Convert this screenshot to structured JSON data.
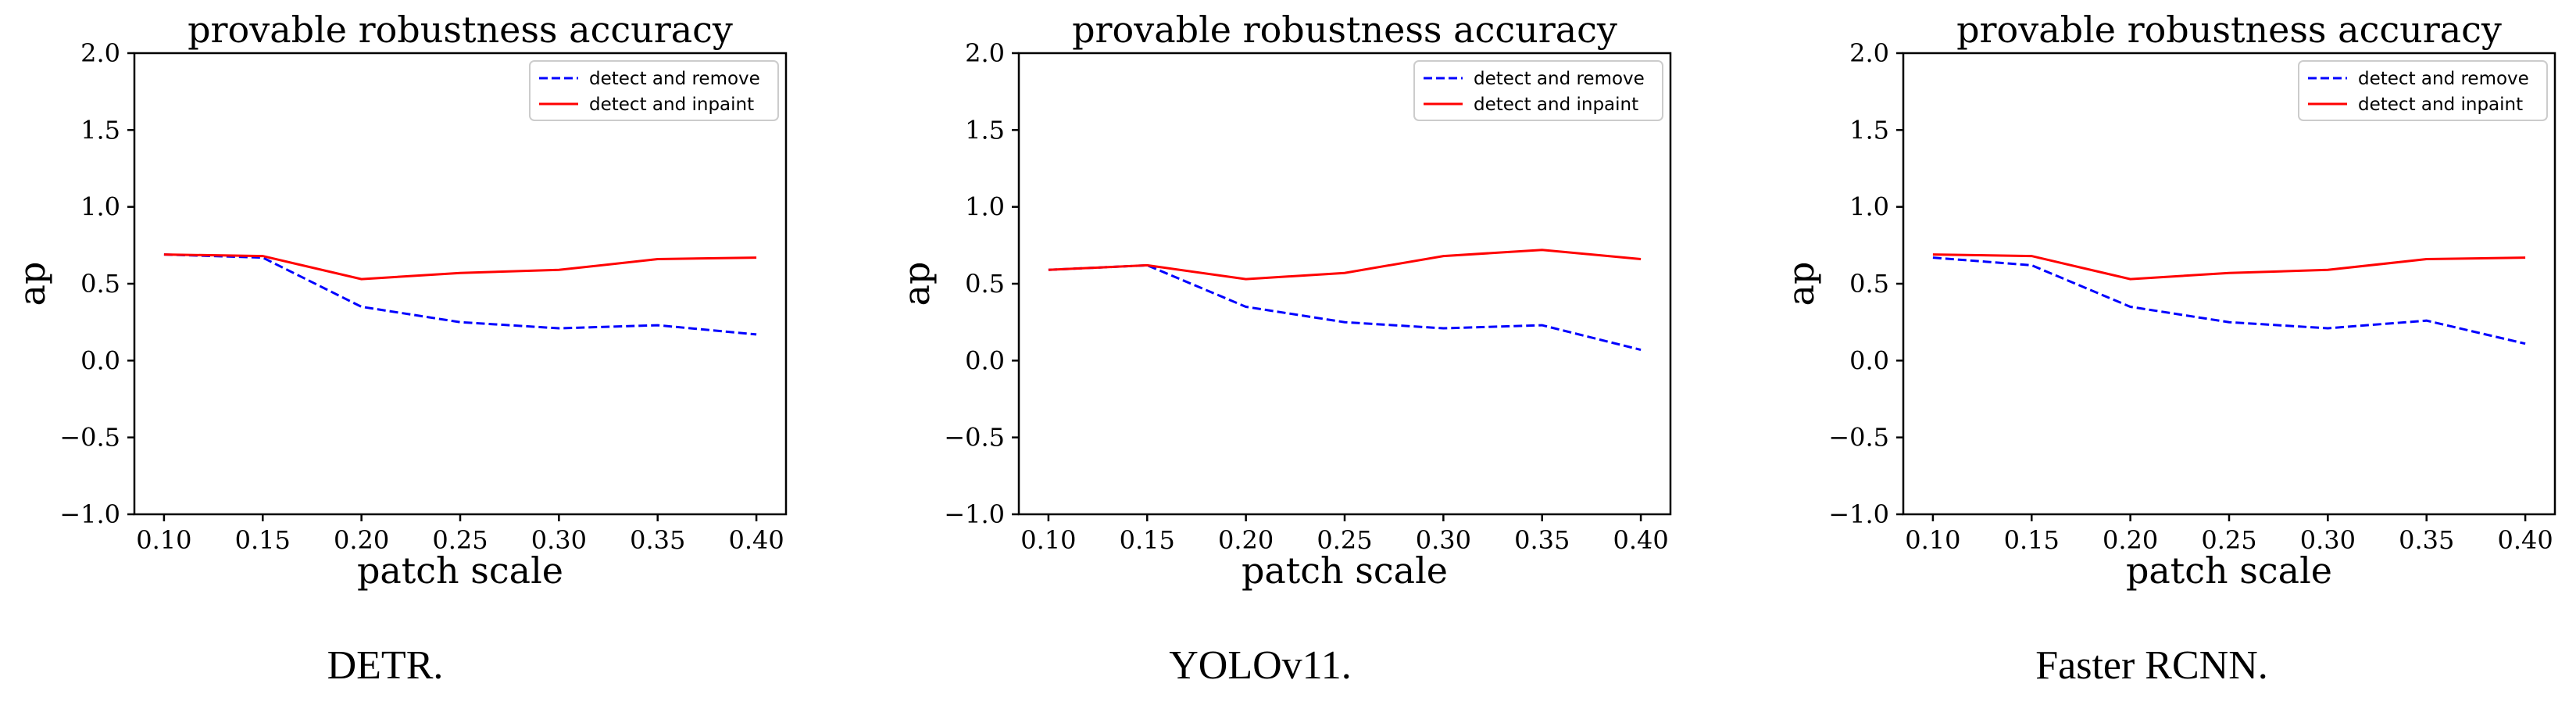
{
  "chart_data": [
    {
      "type": "line",
      "title": "provable robustness accuracy",
      "xlabel": "patch scale",
      "ylabel": "ap",
      "caption": "DETR.",
      "xlim": [
        0.085,
        0.415
      ],
      "ylim": [
        -1.0,
        2.0
      ],
      "x": [
        0.1,
        0.15,
        0.2,
        0.25,
        0.3,
        0.35,
        0.4
      ],
      "xticks": [
        "0.10",
        "0.15",
        "0.20",
        "0.25",
        "0.30",
        "0.35",
        "0.40"
      ],
      "yticks": [
        "−1.0",
        "−0.5",
        "0.0",
        "0.5",
        "1.0",
        "1.5",
        "2.0"
      ],
      "legend_position": "top-right",
      "series": [
        {
          "name": "detect and remove",
          "color": "#0000ff",
          "dash": "dashed",
          "values": [
            0.69,
            0.67,
            0.35,
            0.25,
            0.21,
            0.23,
            0.17
          ]
        },
        {
          "name": "detect and inpaint",
          "color": "#ff0000",
          "dash": "solid",
          "values": [
            0.69,
            0.68,
            0.53,
            0.57,
            0.59,
            0.66,
            0.67
          ]
        }
      ]
    },
    {
      "type": "line",
      "title": "provable robustness accuracy",
      "xlabel": "patch scale",
      "ylabel": "ap",
      "caption": "YOLOv11.",
      "xlim": [
        0.085,
        0.415
      ],
      "ylim": [
        -1.0,
        2.0
      ],
      "x": [
        0.1,
        0.15,
        0.2,
        0.25,
        0.3,
        0.35,
        0.4
      ],
      "xticks": [
        "0.10",
        "0.15",
        "0.20",
        "0.25",
        "0.30",
        "0.35",
        "0.40"
      ],
      "yticks": [
        "−1.0",
        "−0.5",
        "0.0",
        "0.5",
        "1.0",
        "1.5",
        "2.0"
      ],
      "legend_position": "top-right",
      "series": [
        {
          "name": "detect and remove",
          "color": "#0000ff",
          "dash": "dashed",
          "values": [
            0.59,
            0.62,
            0.35,
            0.25,
            0.21,
            0.23,
            0.07
          ]
        },
        {
          "name": "detect and inpaint",
          "color": "#ff0000",
          "dash": "solid",
          "values": [
            0.59,
            0.62,
            0.53,
            0.57,
            0.68,
            0.72,
            0.66
          ]
        }
      ]
    },
    {
      "type": "line",
      "title": "provable robustness accuracy",
      "xlabel": "patch scale",
      "ylabel": "ap",
      "caption": "Faster RCNN.",
      "xlim": [
        0.085,
        0.415
      ],
      "ylim": [
        -1.0,
        2.0
      ],
      "x": [
        0.1,
        0.15,
        0.2,
        0.25,
        0.3,
        0.35,
        0.4
      ],
      "xticks": [
        "0.10",
        "0.15",
        "0.20",
        "0.25",
        "0.30",
        "0.35",
        "0.40"
      ],
      "yticks": [
        "−1.0",
        "−0.5",
        "0.0",
        "0.5",
        "1.0",
        "1.5",
        "2.0"
      ],
      "legend_position": "top-right",
      "series": [
        {
          "name": "detect and remove",
          "color": "#0000ff",
          "dash": "dashed",
          "values": [
            0.67,
            0.62,
            0.35,
            0.25,
            0.21,
            0.26,
            0.11
          ]
        },
        {
          "name": "detect and inpaint",
          "color": "#ff0000",
          "dash": "solid",
          "values": [
            0.69,
            0.68,
            0.53,
            0.57,
            0.59,
            0.66,
            0.67
          ]
        }
      ]
    }
  ]
}
